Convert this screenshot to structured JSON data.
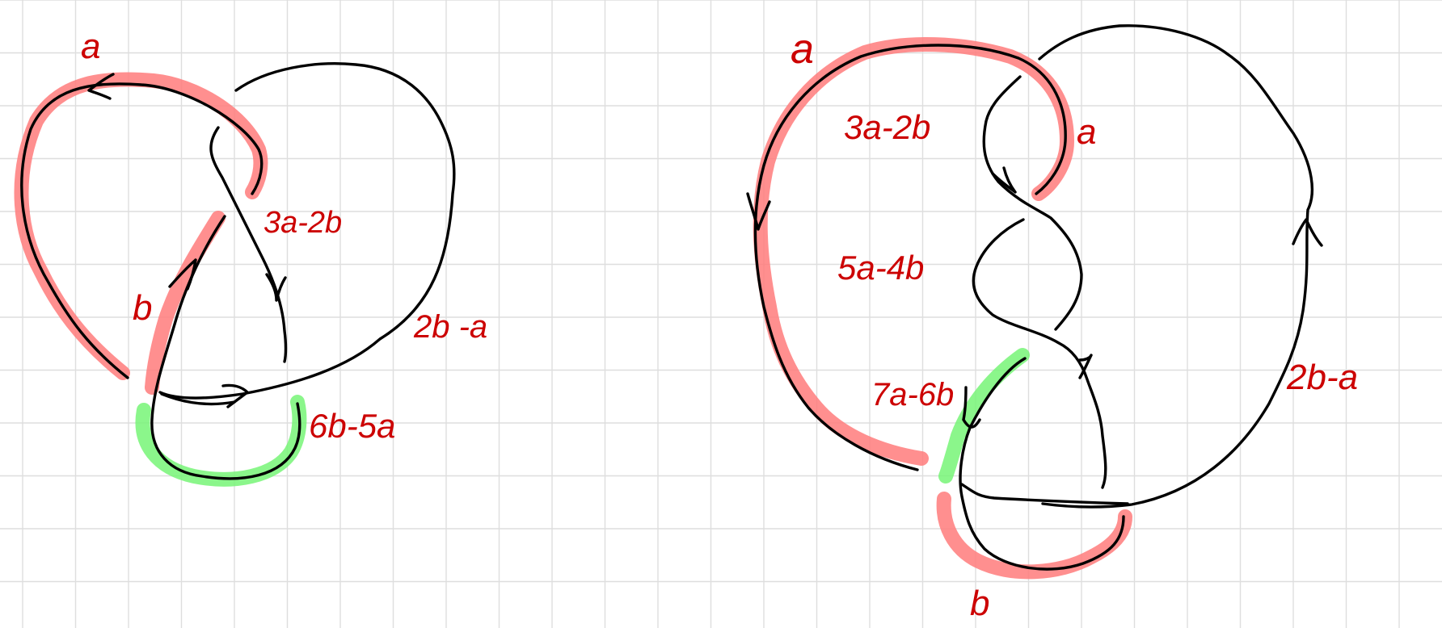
{
  "colors": {
    "background": "#ffffff",
    "grid": "#dedede",
    "strand": "#000000",
    "label": "#cc0000",
    "highlight_red": "#ff7b7b",
    "highlight_green": "#77f577"
  },
  "left_knot": {
    "labels": {
      "a": "a",
      "b": "b",
      "three_a_minus_two_b": "3a-2b",
      "two_b_minus_a": "2b -a",
      "six_b_minus_five_a": "6b-5a"
    }
  },
  "right_knot": {
    "labels": {
      "a_outer": "a",
      "a_inner": "a",
      "three_a_minus_two_b": "3a-2b",
      "five_a_minus_four_b": "5a-4b",
      "seven_a_minus_six_b": "7a-6b",
      "two_b_minus_a": "2b-a",
      "b": "b"
    }
  }
}
